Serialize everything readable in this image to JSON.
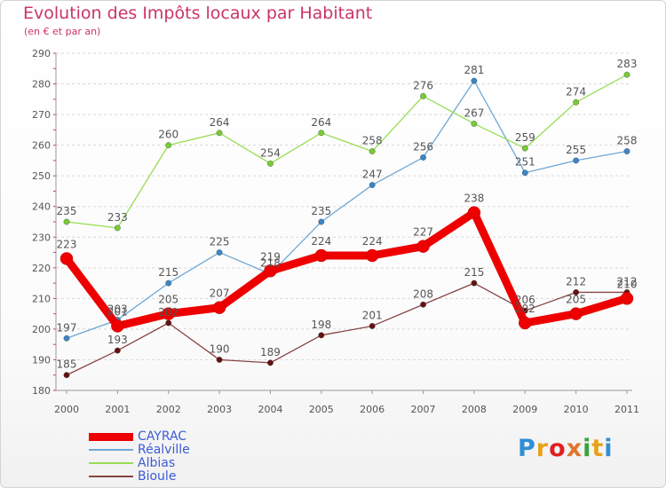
{
  "page": {
    "title": "Evolution des Impôts locaux par Habitant",
    "subtitle": "(en € et par an)",
    "logo_text": "Proxiti"
  },
  "colors": {
    "accent": "#cc3366",
    "axis": "#555555",
    "grid": "#d8d8d8",
    "logo": [
      "#2f8fd6",
      "#e8a21b",
      "#e02020",
      "#e0762a",
      "#3aa43a",
      "#e8a21b",
      "#2f8fd6"
    ]
  },
  "chart_data": {
    "type": "line",
    "title": "Evolution des Impôts locaux par Habitant",
    "subtitle": "(en € et par an)",
    "xlabel": "",
    "ylabel": "",
    "ylim": [
      180,
      290
    ],
    "yticks": [
      180,
      190,
      200,
      210,
      220,
      230,
      240,
      250,
      260,
      270,
      280,
      290
    ],
    "x": [
      "2000",
      "2001",
      "2002",
      "2003",
      "2004",
      "2005",
      "2006",
      "2007",
      "2008",
      "2009",
      "2010",
      "2011"
    ],
    "grid": "horizontal dashed",
    "legend_position": "bottom-left",
    "series": [
      {
        "name": "CAYRAC",
        "color": "#ee0000",
        "point_color": "#ee0000",
        "emphasis": true,
        "values": [
          223,
          201,
          205,
          207,
          219,
          224,
          224,
          227,
          238,
          202,
          205,
          210
        ]
      },
      {
        "name": "Réalville",
        "color": "#6fa8d6",
        "point_color": "#3a86c8",
        "emphasis": false,
        "values": [
          197,
          203,
          215,
          225,
          218,
          235,
          247,
          256,
          281,
          251,
          255,
          258
        ]
      },
      {
        "name": "Albias",
        "color": "#99dd55",
        "point_color": "#77cc33",
        "emphasis": false,
        "values": [
          235,
          233,
          260,
          264,
          254,
          264,
          258,
          276,
          267,
          259,
          274,
          283
        ]
      },
      {
        "name": "Bioule",
        "color": "#884444",
        "point_color": "#661111",
        "emphasis": false,
        "values": [
          185,
          193,
          202,
          190,
          189,
          198,
          201,
          208,
          215,
          206,
          212,
          212
        ]
      }
    ]
  }
}
